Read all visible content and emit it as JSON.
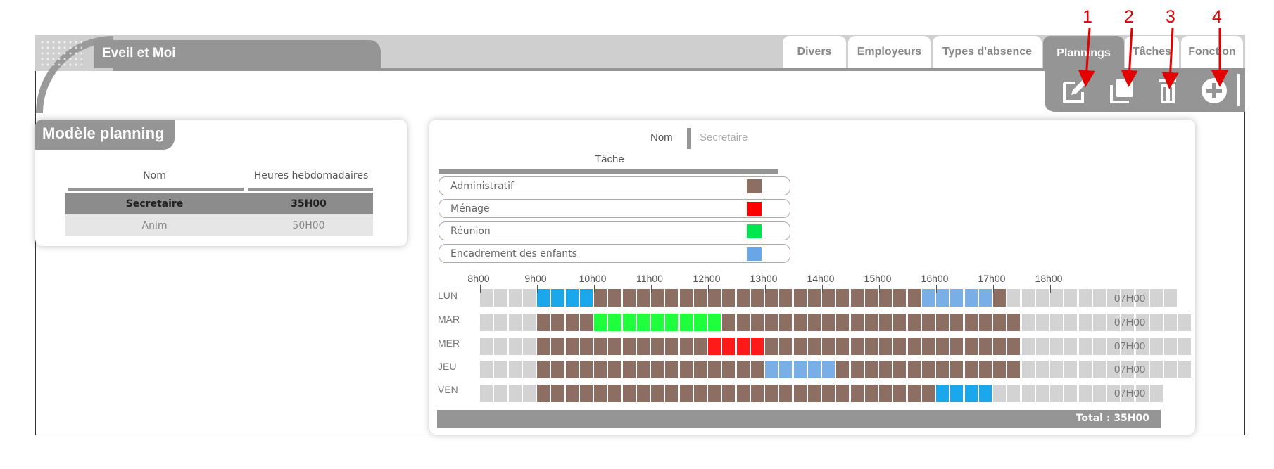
{
  "app": {
    "title": "Eveil et Moi"
  },
  "nav_tabs": [
    {
      "label": "Divers"
    },
    {
      "label": "Employeurs"
    },
    {
      "label": "Types d'absence"
    },
    {
      "label": "Plannings"
    },
    {
      "label": "Tâches"
    },
    {
      "label": "Fonction"
    }
  ],
  "toolbar": {
    "icons": [
      "edit-icon",
      "copy-icon",
      "delete-icon",
      "add-icon"
    ],
    "annotations": [
      "1",
      "2",
      "3",
      "4"
    ]
  },
  "left_panel": {
    "title": "Modèle planning",
    "columns": [
      "Nom",
      "Heures hebdomadaires"
    ],
    "rows": [
      {
        "name": "Secretaire",
        "hours": "35H00",
        "selected": true
      },
      {
        "name": "Anim",
        "hours": "50H00",
        "selected": false
      }
    ]
  },
  "right_panel": {
    "nom_label": "Nom",
    "nom_value": "Secretaire",
    "tache_label": "Tâche",
    "tasks": [
      {
        "label": "Administratif",
        "color": "#8d6e63"
      },
      {
        "label": "Ménage",
        "color": "#ff0000"
      },
      {
        "label": "Réunion",
        "color": "#00e64d"
      },
      {
        "label": "Encadrement des enfants",
        "color": "#6aa5e6"
      }
    ],
    "hours": [
      "8h00",
      "9h00",
      "10h00",
      "11h00",
      "12h00",
      "13h00",
      "14h00",
      "15h00",
      "16h00",
      "17h00",
      "18h00"
    ],
    "days": [
      {
        "label": "LUN",
        "total": "07H00",
        "cells": "EEEEBBBBAAAAAAAAAAAAAAAAAAAAAAACCCCCAEEEEEEEEEEEE"
      },
      {
        "label": "MAR",
        "total": "07H00",
        "cells": "EEEEAAAARRRRRRRRRAAAAAAAAAAAAAAAAAAAAAEEEEEEEEEEEE"
      },
      {
        "label": "MER",
        "total": "07H00",
        "cells": "EEEEAAAAAAAAAAAAMMMMAAAAAAAAAAAAAAAAAAEEEEEEEEEEEE"
      },
      {
        "label": "JEU",
        "total": "07H00",
        "cells": "EEEEAAAAAAAAAAAAAAAACCCCCAAAAAAAAAAAAAEEEEEEEEEEEE"
      },
      {
        "label": "VEN",
        "total": "07H00",
        "cells": "EEEEAAAAAAAAAAAAAAAAAAAAAAAAAAAABBBBEEEEEEEEEEEE"
      }
    ],
    "cell_colors": {
      "E": "#d3d3d3",
      "A": "#8d6e63",
      "B": "#1aa7ec",
      "C": "#79aee6",
      "R": "#1fff3c",
      "M": "#ff1a1a"
    },
    "total_text": "Total : 35H00"
  },
  "colors": {
    "accent_gray": "#959595",
    "annotation_red": "#e30000"
  }
}
